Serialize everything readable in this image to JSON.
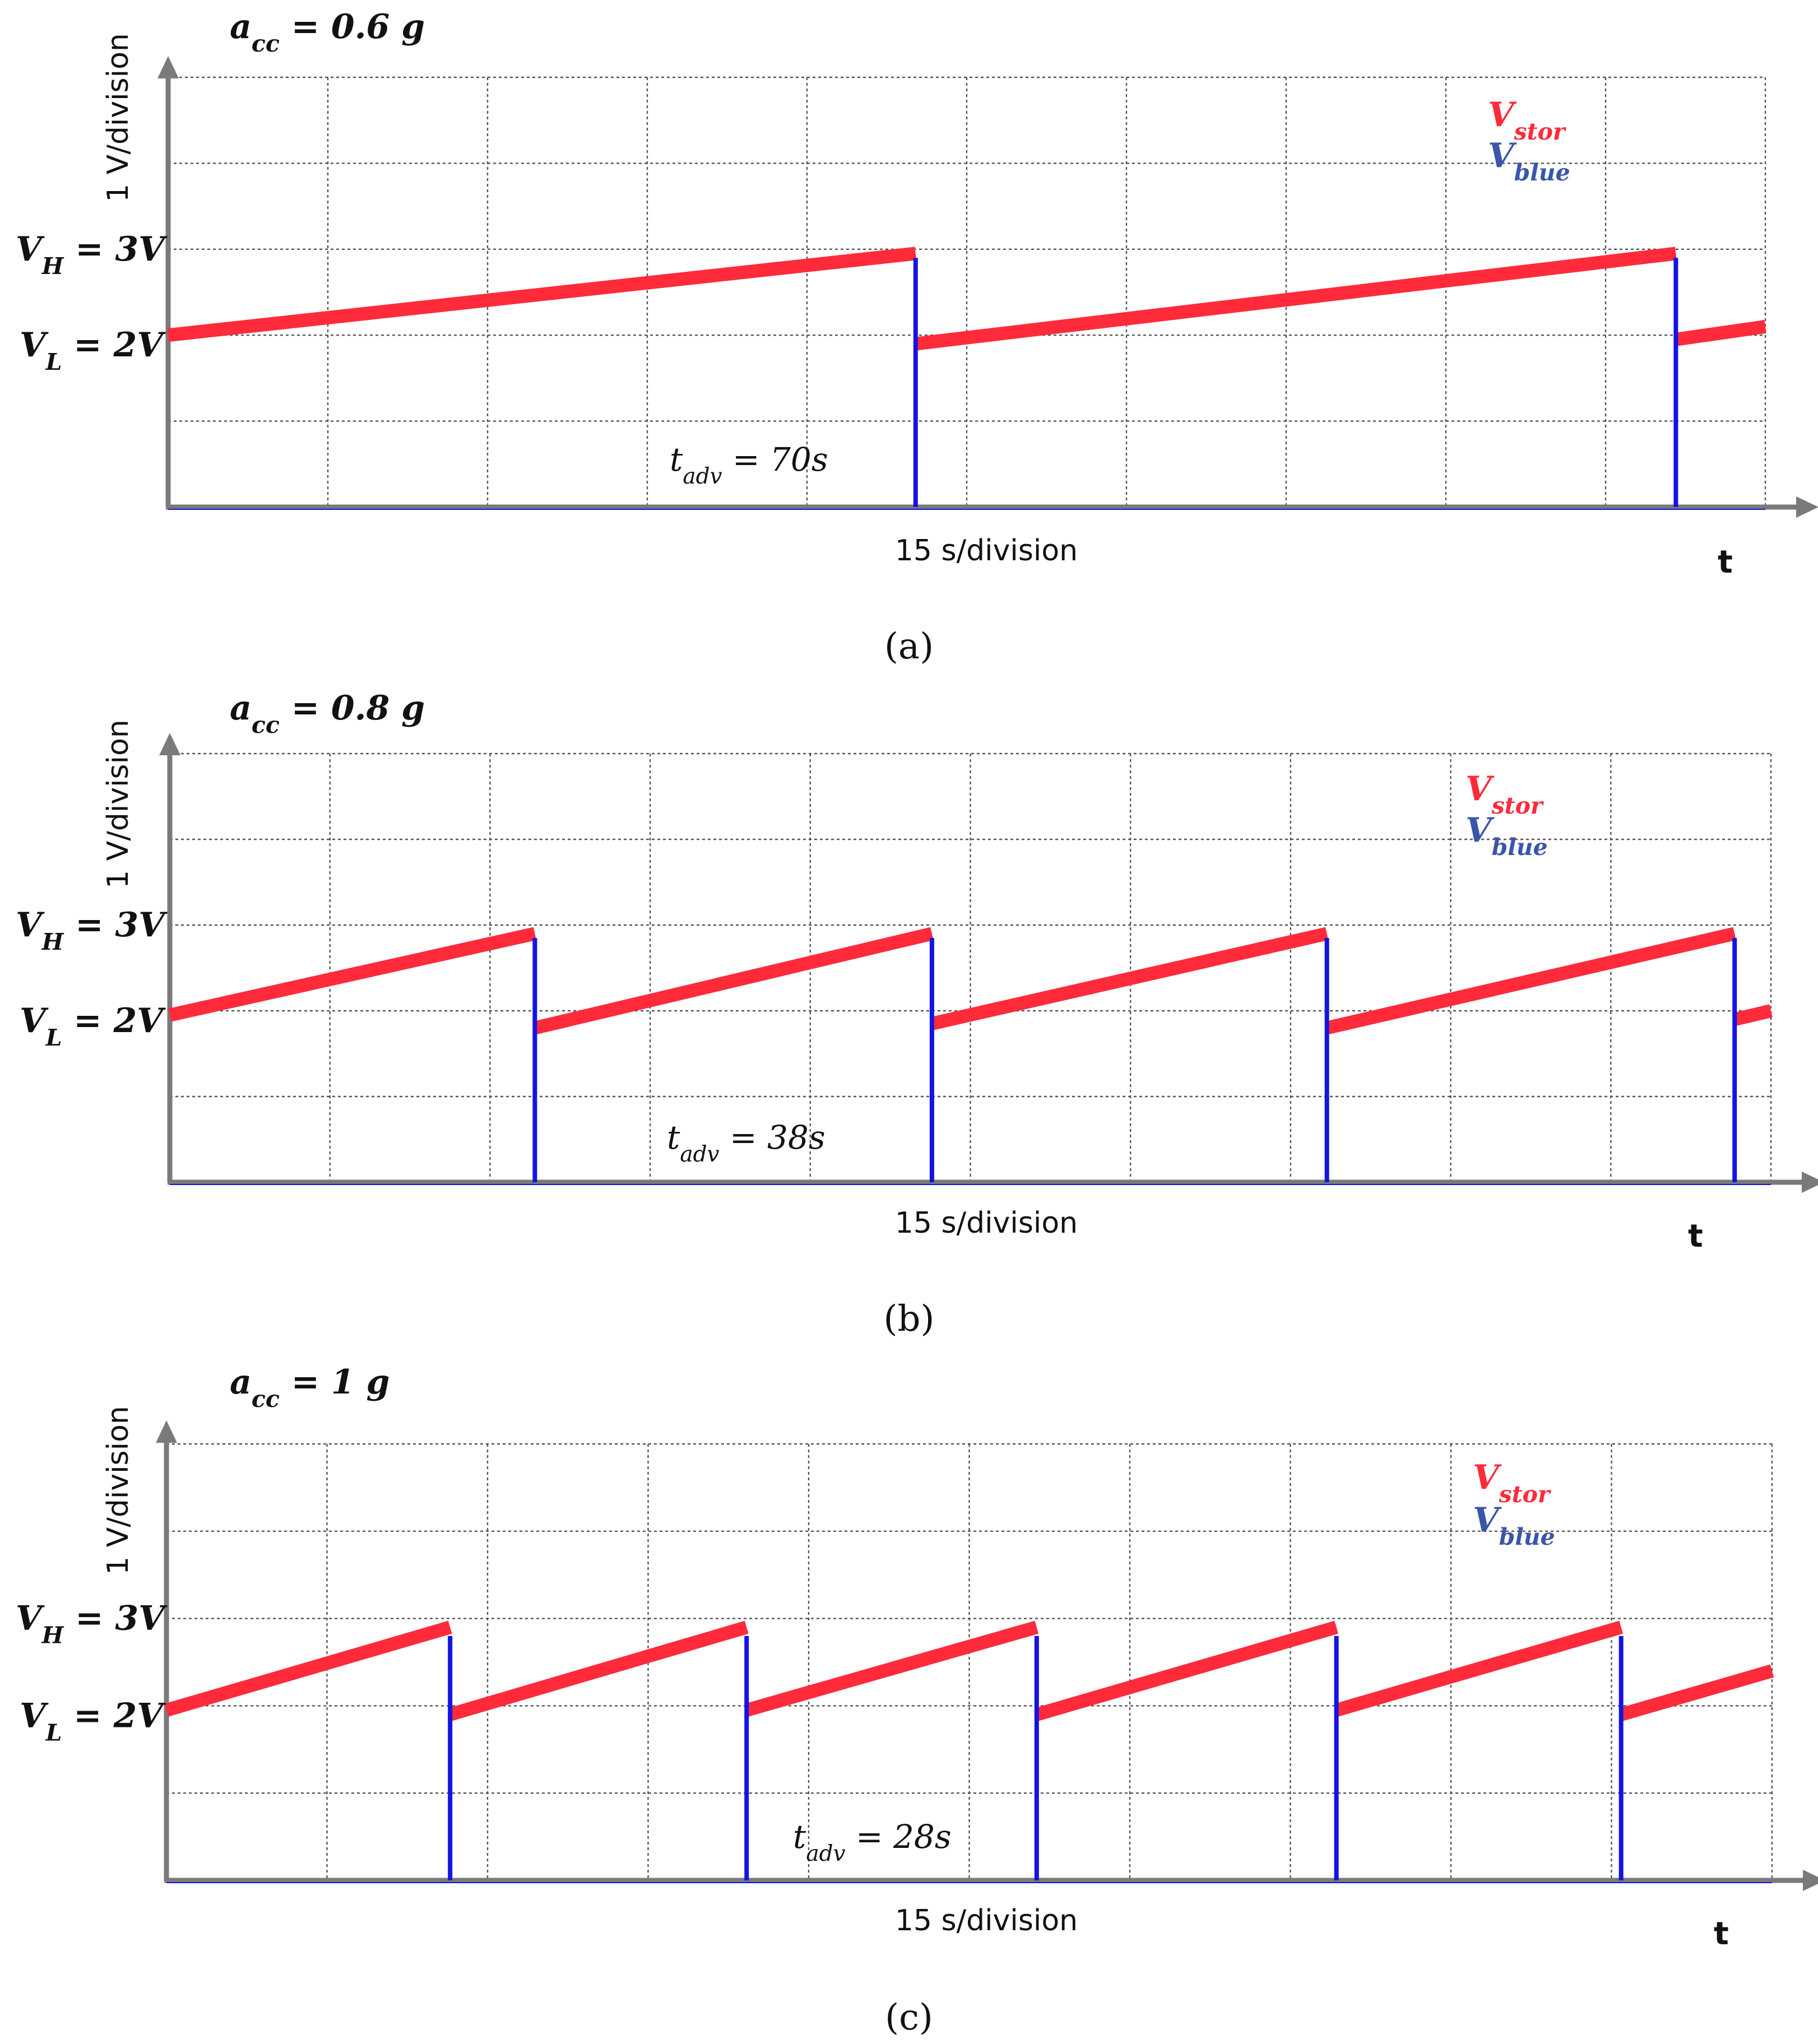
{
  "figure": {
    "colors": {
      "stor": "#ff2b3a",
      "blue": "#1414e0",
      "axis": "#7a7a7a",
      "grid": "#555555",
      "legend_blue": "#3a56a8",
      "text": "#111111"
    }
  },
  "chart_data": [
    {
      "type": "line",
      "panel": "a",
      "title": {
        "var": "a",
        "sub": "cc",
        "rest": " = 0.6 g"
      },
      "caption": "(a)",
      "ylabel": "1 V/division",
      "xlabel": "15 s/division",
      "xaxis_symbol": "t",
      "vh_label": {
        "var": "V",
        "sub": "H",
        "rest": " = 3V"
      },
      "vl_label": {
        "var": "V",
        "sub": "L",
        "rest": " = 2V"
      },
      "annotation": {
        "var": "t",
        "sub": "adv",
        "rest": " = 70s"
      },
      "legend": [
        {
          "var": "V",
          "sub": "stor"
        },
        {
          "var": "V",
          "sub": "blue"
        }
      ],
      "grid": true,
      "xlim": [
        0,
        150
      ],
      "ylim": [
        0,
        5
      ],
      "x_divisions": 10,
      "y_divisions": 5,
      "series": [
        {
          "name": "V_stor",
          "points": [
            [
              0,
              2.0
            ],
            [
              70.2,
              2.95
            ],
            [
              70.2,
              1.9
            ],
            [
              141.6,
              2.95
            ],
            [
              141.6,
              1.95
            ],
            [
              150,
              2.1
            ]
          ]
        },
        {
          "name": "V_blue",
          "pulses": [
            70.2,
            141.6
          ],
          "pulse_top": 2.9
        }
      ]
    },
    {
      "type": "line",
      "panel": "b",
      "title": {
        "var": "a",
        "sub": "cc",
        "rest": " = 0.8 g"
      },
      "caption": "(b)",
      "ylabel": "1 V/division",
      "xlabel": "15 s/division",
      "xaxis_symbol": "t",
      "vh_label": {
        "var": "V",
        "sub": "H",
        "rest": " = 3V"
      },
      "vl_label": {
        "var": "V",
        "sub": "L",
        "rest": " = 2V"
      },
      "annotation": {
        "var": "t",
        "sub": "adv",
        "rest": " = 38s"
      },
      "legend": [
        {
          "var": "V",
          "sub": "stor"
        },
        {
          "var": "V",
          "sub": "blue"
        }
      ],
      "grid": true,
      "xlim": [
        0,
        150
      ],
      "ylim": [
        0,
        5
      ],
      "x_divisions": 10,
      "y_divisions": 5,
      "series": [
        {
          "name": "V_stor",
          "points": [
            [
              0,
              1.95
            ],
            [
              34.2,
              2.9
            ],
            [
              34.2,
              1.8
            ],
            [
              71.4,
              2.9
            ],
            [
              71.4,
              1.85
            ],
            [
              108.4,
              2.9
            ],
            [
              108.4,
              1.8
            ],
            [
              146.6,
              2.9
            ],
            [
              146.6,
              1.9
            ],
            [
              150,
              2.0
            ]
          ]
        },
        {
          "name": "V_blue",
          "pulses": [
            34.2,
            71.4,
            108.4,
            146.6
          ],
          "pulse_top": 2.85
        }
      ]
    },
    {
      "type": "line",
      "panel": "c",
      "title": {
        "var": "a",
        "sub": "cc",
        "rest": " = 1 g"
      },
      "caption": "(c)",
      "ylabel": "1 V/division",
      "xlabel": "15 s/division",
      "xaxis_symbol": "t",
      "vh_label": {
        "var": "V",
        "sub": "H",
        "rest": " = 3V"
      },
      "vl_label": {
        "var": "V",
        "sub": "L",
        "rest": " = 2V"
      },
      "annotation": {
        "var": "t",
        "sub": "adv",
        "rest": " = 28s"
      },
      "legend": [
        {
          "var": "V",
          "sub": "stor"
        },
        {
          "var": "V",
          "sub": "blue"
        }
      ],
      "grid": true,
      "xlim": [
        0,
        150
      ],
      "ylim": [
        0,
        5
      ],
      "x_divisions": 10,
      "y_divisions": 5,
      "series": [
        {
          "name": "V_stor",
          "points": [
            [
              0,
              1.95
            ],
            [
              26.5,
              2.9
            ],
            [
              26.5,
              1.9
            ],
            [
              54.2,
              2.9
            ],
            [
              54.2,
              1.95
            ],
            [
              81.3,
              2.9
            ],
            [
              81.3,
              1.9
            ],
            [
              109.3,
              2.9
            ],
            [
              109.3,
              1.95
            ],
            [
              135.9,
              2.9
            ],
            [
              135.9,
              1.9
            ],
            [
              150,
              2.4
            ]
          ]
        },
        {
          "name": "V_blue",
          "pulses": [
            26.5,
            54.2,
            81.3,
            109.3,
            135.9
          ],
          "pulse_top": 2.8
        }
      ]
    }
  ]
}
